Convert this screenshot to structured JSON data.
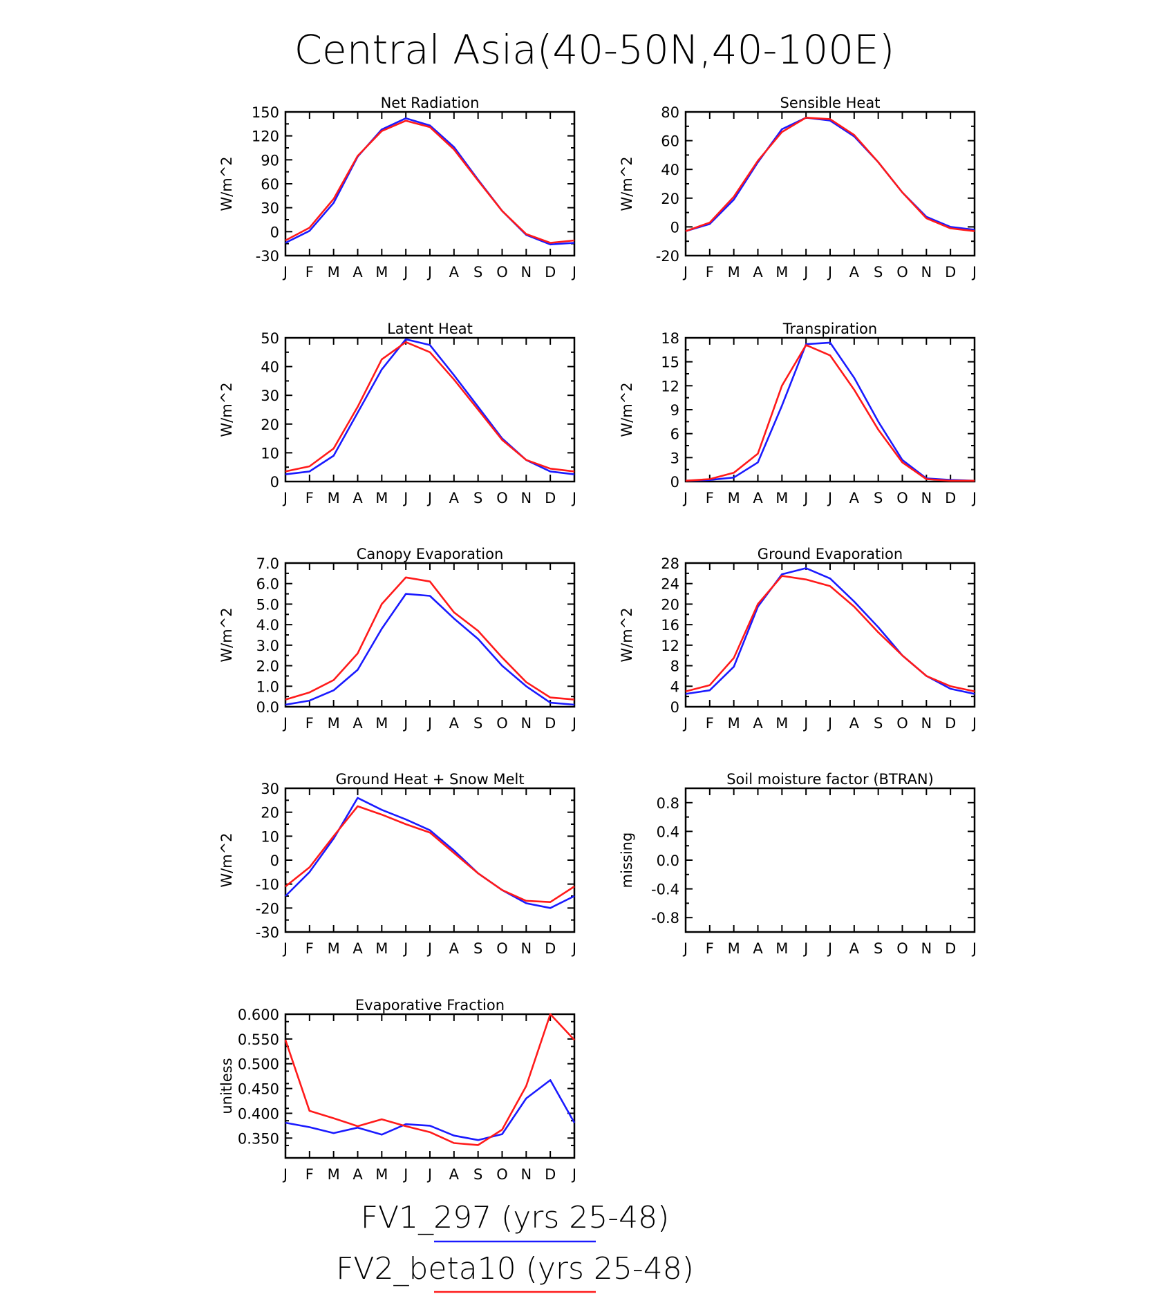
{
  "title": "Central Asia(40-50N,40-100E)",
  "months": [
    "J",
    "F",
    "M",
    "A",
    "M",
    "J",
    "J",
    "A",
    "S",
    "O",
    "N",
    "D",
    "J"
  ],
  "legend": [
    {
      "label": "FV1_297 (yrs 25-48)",
      "color": "#1a1aff"
    },
    {
      "label": "FV2_beta10 (yrs 25-48)",
      "color": "#ff1a1a"
    }
  ],
  "chart_data": [
    {
      "type": "line",
      "title": "Net Radiation",
      "ylabel": "W/m^2",
      "ylim": [
        -30,
        150
      ],
      "yticks": [
        "150",
        "120",
        "90",
        "60",
        "30",
        "0",
        "-30"
      ],
      "ytick_values": [
        150,
        120,
        90,
        60,
        30,
        0,
        -30
      ],
      "series": [
        {
          "name": "FV1_297 (yrs 25-48)",
          "color": "#1a1aff",
          "values": [
            -14,
            1,
            36,
            94,
            128,
            142,
            133,
            106,
            65,
            26,
            -4,
            -16,
            -14
          ]
        },
        {
          "name": "FV2_beta10 (yrs 25-48)",
          "color": "#ff1a1a",
          "values": [
            -11,
            5,
            41,
            95,
            126,
            139,
            131,
            103,
            64,
            26,
            -3,
            -14,
            -11
          ]
        }
      ]
    },
    {
      "type": "line",
      "title": "Sensible Heat",
      "ylabel": "W/m^2",
      "ylim": [
        -20,
        80
      ],
      "yticks": [
        "80",
        "60",
        "40",
        "20",
        "0",
        "-20"
      ],
      "ytick_values": [
        80,
        60,
        40,
        20,
        0,
        -20
      ],
      "series": [
        {
          "name": "FV1_297 (yrs 25-48)",
          "color": "#1a1aff",
          "values": [
            -3,
            2,
            19,
            45,
            68,
            76,
            74,
            63,
            45,
            24,
            7,
            0,
            -2
          ]
        },
        {
          "name": "FV2_beta10 (yrs 25-48)",
          "color": "#ff1a1a",
          "values": [
            -3,
            3,
            21,
            46,
            66,
            76,
            75,
            64,
            45,
            24,
            6,
            -1,
            -3
          ]
        }
      ]
    },
    {
      "type": "line",
      "title": "Latent Heat",
      "ylabel": "W/m^2",
      "ylim": [
        0,
        50
      ],
      "yticks": [
        "50",
        "40",
        "30",
        "20",
        "10",
        "0"
      ],
      "ytick_values": [
        50,
        40,
        30,
        20,
        10,
        0
      ],
      "series": [
        {
          "name": "FV1_297 (yrs 25-48)",
          "color": "#1a1aff",
          "values": [
            2.5,
            3.5,
            9,
            24,
            39,
            49.5,
            47.5,
            37,
            26,
            15,
            7.5,
            3.5,
            2.5
          ]
        },
        {
          "name": "FV2_beta10 (yrs 25-48)",
          "color": "#ff1a1a",
          "values": [
            3.5,
            5.3,
            11.5,
            26,
            42.5,
            48.5,
            45,
            35.5,
            25,
            14.5,
            7.5,
            4.5,
            3.5
          ]
        }
      ]
    },
    {
      "type": "line",
      "title": "Transpiration",
      "ylabel": "W/m^2",
      "ylim": [
        0,
        18
      ],
      "yticks": [
        "18",
        "15",
        "12",
        "9",
        "6",
        "3",
        "0"
      ],
      "ytick_values": [
        18,
        15,
        12,
        9,
        6,
        3,
        0
      ],
      "series": [
        {
          "name": "FV1_297 (yrs 25-48)",
          "color": "#1a1aff",
          "values": [
            0.1,
            0.2,
            0.5,
            2.4,
            9.5,
            17.2,
            17.4,
            13,
            7.5,
            2.7,
            0.4,
            0.2,
            0.1
          ]
        },
        {
          "name": "FV2_beta10 (yrs 25-48)",
          "color": "#ff1a1a",
          "values": [
            0.1,
            0.3,
            1.1,
            3.5,
            12,
            17.1,
            15.8,
            11.5,
            6.5,
            2.4,
            0.3,
            0.1,
            0.1
          ]
        }
      ]
    },
    {
      "type": "line",
      "title": "Canopy Evaporation",
      "ylabel": "W/m^2",
      "ylim": [
        0,
        7
      ],
      "yticks": [
        "7.0",
        "6.0",
        "5.0",
        "4.0",
        "3.0",
        "2.0",
        "1.0",
        "0.0"
      ],
      "ytick_values": [
        7,
        6,
        5,
        4,
        3,
        2,
        1,
        0
      ],
      "series": [
        {
          "name": "FV1_297 (yrs 25-48)",
          "color": "#1a1aff",
          "values": [
            0.1,
            0.3,
            0.8,
            1.8,
            3.8,
            5.5,
            5.4,
            4.3,
            3.3,
            2.0,
            1.0,
            0.2,
            0.1
          ]
        },
        {
          "name": "FV2_beta10 (yrs 25-48)",
          "color": "#ff1a1a",
          "values": [
            0.35,
            0.7,
            1.3,
            2.6,
            5.0,
            6.3,
            6.1,
            4.6,
            3.7,
            2.4,
            1.2,
            0.45,
            0.35
          ]
        }
      ]
    },
    {
      "type": "line",
      "title": "Ground Evaporation",
      "ylabel": "W/m^2",
      "ylim": [
        0,
        28
      ],
      "yticks": [
        "28",
        "24",
        "20",
        "16",
        "12",
        "8",
        "4",
        "0"
      ],
      "ytick_values": [
        28,
        24,
        20,
        16,
        12,
        8,
        4,
        0
      ],
      "series": [
        {
          "name": "FV1_297 (yrs 25-48)",
          "color": "#1a1aff",
          "values": [
            2.5,
            3.2,
            7.8,
            19.5,
            25.8,
            27,
            25,
            20.5,
            15.5,
            10,
            6,
            3.5,
            2.5
          ]
        },
        {
          "name": "FV2_beta10 (yrs 25-48)",
          "color": "#ff1a1a",
          "values": [
            3,
            4.2,
            9.5,
            20,
            25.5,
            24.8,
            23.5,
            19.5,
            14.5,
            10,
            6,
            4,
            3
          ]
        }
      ]
    },
    {
      "type": "line",
      "title": "Ground Heat + Snow Melt",
      "ylabel": "W/m^2",
      "ylim": [
        -30,
        30
      ],
      "yticks": [
        "30",
        "20",
        "10",
        "0",
        "-10",
        "-20",
        "-30"
      ],
      "ytick_values": [
        30,
        20,
        10,
        0,
        -10,
        -20,
        -30
      ],
      "series": [
        {
          "name": "FV1_297 (yrs 25-48)",
          "color": "#1a1aff",
          "values": [
            -15,
            -5,
            9,
            26,
            21,
            17,
            12.5,
            4,
            -5.5,
            -12.5,
            -18,
            -20,
            -15
          ]
        },
        {
          "name": "FV2_beta10 (yrs 25-48)",
          "color": "#ff1a1a",
          "values": [
            -11,
            -3,
            10,
            22.5,
            19,
            15,
            11.5,
            3,
            -5.5,
            -12.5,
            -17,
            -17.5,
            -11
          ]
        }
      ]
    },
    {
      "type": "line",
      "title": "Soil moisture factor (BTRAN)",
      "ylabel": "missing",
      "ylim": [
        -1,
        1
      ],
      "yticks": [
        "0.8",
        "0.4",
        "0.0",
        "-0.4",
        "-0.8"
      ],
      "ytick_values": [
        0.8,
        0.4,
        0,
        -0.4,
        -0.8
      ],
      "series": []
    },
    {
      "type": "line",
      "title": "Evaporative Fraction",
      "ylabel": "unitless",
      "ylim": [
        0.31,
        0.6
      ],
      "yticks": [
        "0.600",
        "0.550",
        "0.500",
        "0.450",
        "0.400",
        "0.350"
      ],
      "ytick_values": [
        0.6,
        0.55,
        0.5,
        0.45,
        0.4,
        0.35
      ],
      "series": [
        {
          "name": "FV1_297 (yrs 25-48)",
          "color": "#1a1aff",
          "values": [
            0.381,
            0.372,
            0.36,
            0.371,
            0.357,
            0.378,
            0.375,
            0.355,
            0.346,
            0.358,
            0.43,
            0.467,
            0.381
          ]
        },
        {
          "name": "FV2_beta10 (yrs 25-48)",
          "color": "#ff1a1a",
          "values": [
            0.548,
            0.405,
            0.39,
            0.374,
            0.388,
            0.374,
            0.362,
            0.34,
            0.336,
            0.367,
            0.455,
            0.6,
            0.548
          ]
        }
      ]
    }
  ]
}
